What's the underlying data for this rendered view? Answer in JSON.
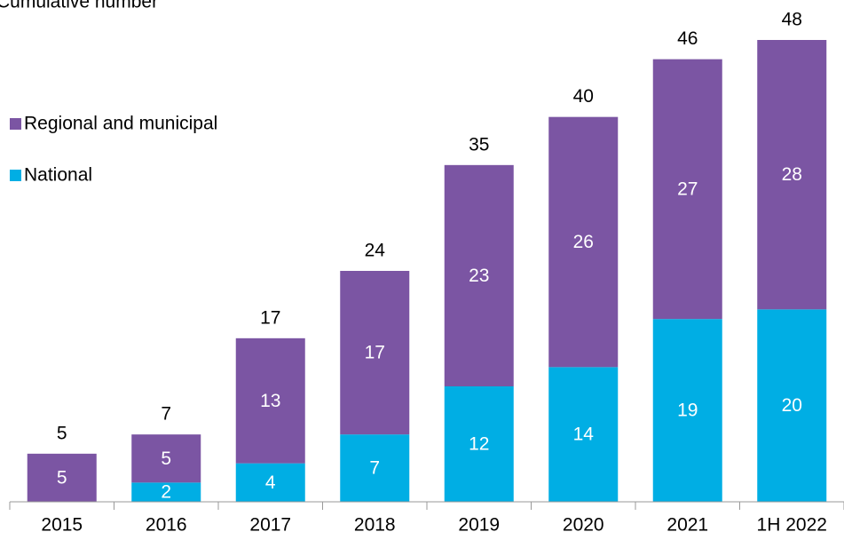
{
  "chart_data": {
    "type": "stacked_bar",
    "title": "Cumulative number",
    "categories": [
      "2015",
      "2016",
      "2017",
      "2018",
      "2019",
      "2020",
      "2021",
      "1H 2022"
    ],
    "series": [
      {
        "name": "National",
        "color": "#00aee4",
        "values": [
          null,
          2,
          4,
          7,
          12,
          14,
          19,
          20
        ]
      },
      {
        "name": "Regional and municipal",
        "color": "#7b55a3",
        "values": [
          5,
          5,
          13,
          17,
          23,
          26,
          27,
          28
        ]
      }
    ],
    "totals": [
      5,
      7,
      17,
      24,
      35,
      40,
      46,
      48
    ],
    "legend": "upper left"
  }
}
